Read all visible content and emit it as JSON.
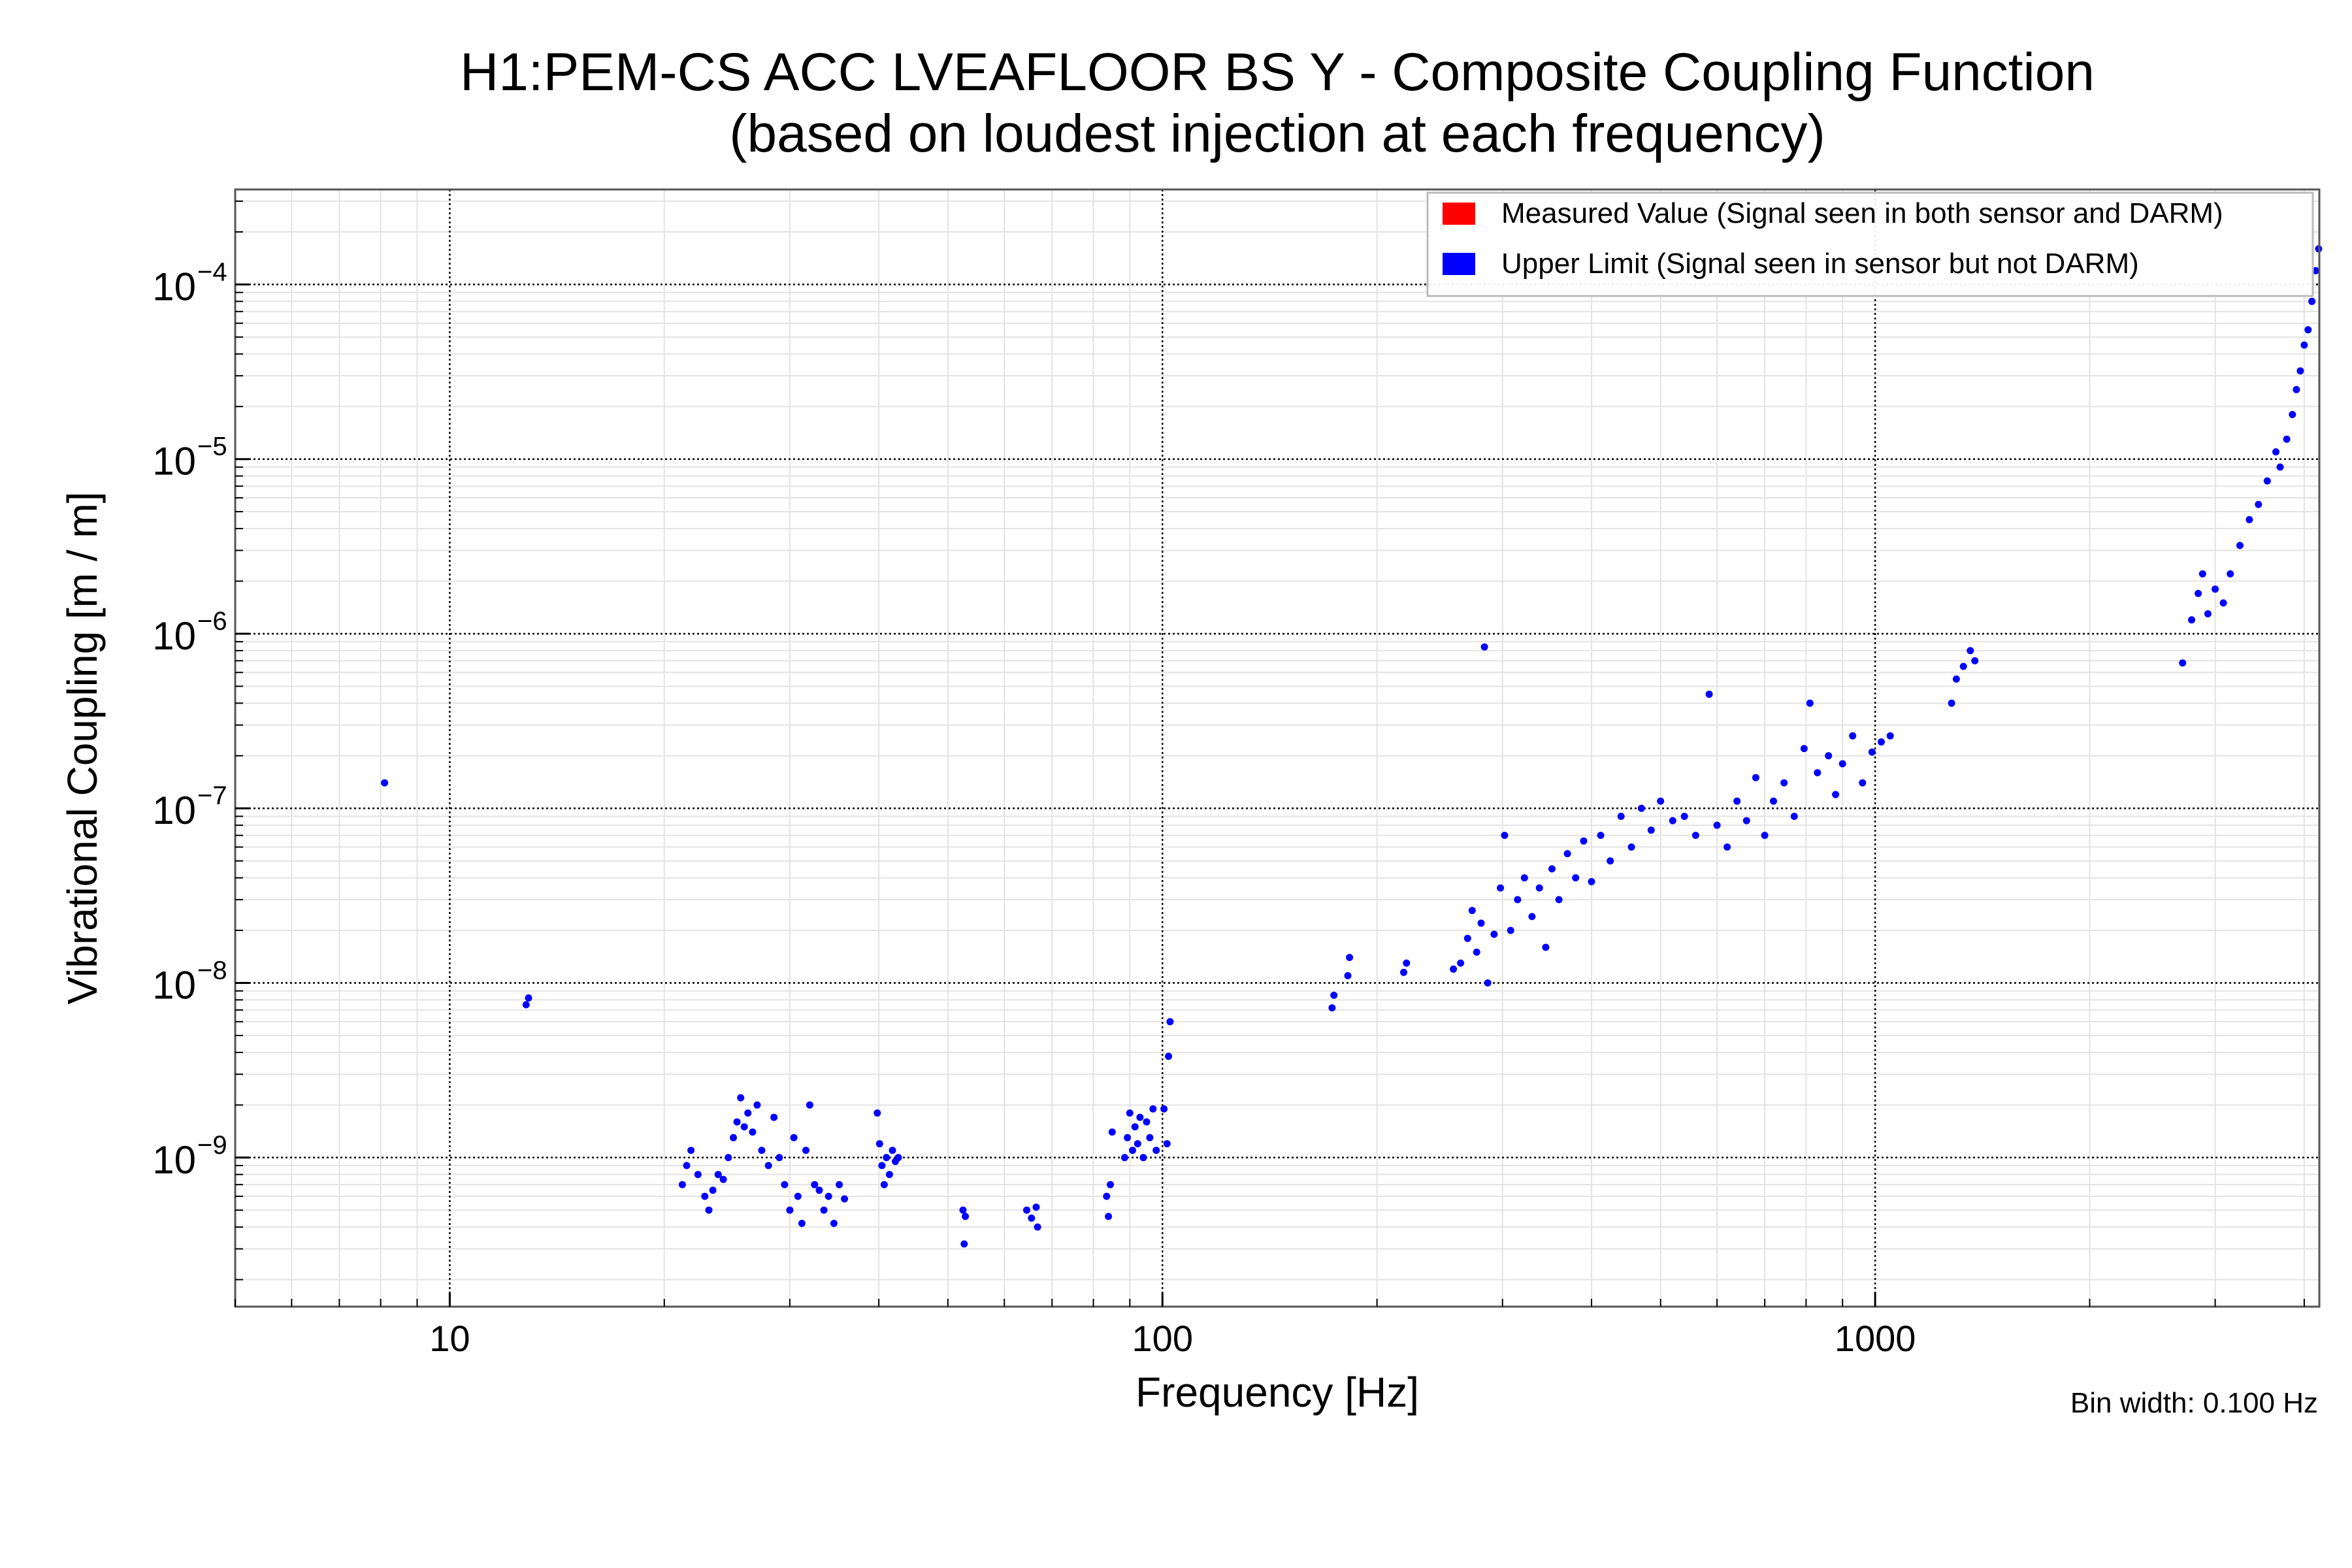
{
  "chart_data": {
    "type": "scatter",
    "title_line1": "H1:PEM-CS ACC LVEAFLOOR BS Y - Composite Coupling Function",
    "title_line2": "(based on loudest injection at each frequency)",
    "xlabel": "Frequency [Hz]",
    "ylabel": "Vibrational Coupling [m / m]",
    "x_scale": "log",
    "y_scale": "log",
    "xlim": [
      5,
      4200
    ],
    "ylim": [
      1.4e-10,
      0.00035
    ],
    "x_ticks": [
      10,
      100,
      1000
    ],
    "x_tick_labels": [
      "10",
      "100",
      "1000"
    ],
    "y_ticks": [
      1e-09,
      1e-08,
      1e-07,
      1e-06,
      1e-05,
      0.0001
    ],
    "y_tick_labels": [
      {
        "base": "10",
        "exp": "−9"
      },
      {
        "base": "10",
        "exp": "−8"
      },
      {
        "base": "10",
        "exp": "−7"
      },
      {
        "base": "10",
        "exp": "−6"
      },
      {
        "base": "10",
        "exp": "−5"
      },
      {
        "base": "10",
        "exp": "−4"
      }
    ],
    "grid": true,
    "legend_position": "top-right",
    "annotation": "Bin width: 0.100 Hz",
    "colors": {
      "measured": "#ff0000",
      "upper_limit": "#0000ff"
    },
    "series": [
      {
        "name": "Measured Value (Signal seen in both sensor and DARM)",
        "color": "#ff0000",
        "points": []
      },
      {
        "name": "Upper Limit (Signal seen in sensor but not DARM)",
        "color": "#0000ff",
        "points": [
          [
            8.1,
            1.4e-07
          ],
          [
            12.8,
            7.5e-09
          ],
          [
            12.9,
            8.2e-09
          ],
          [
            21.2,
            7e-10
          ],
          [
            21.5,
            9e-10
          ],
          [
            21.8,
            1.1e-09
          ],
          [
            22.3,
            8e-10
          ],
          [
            22.8,
            6e-10
          ],
          [
            23.1,
            5e-10
          ],
          [
            23.4,
            6.5e-10
          ],
          [
            23.8,
            8e-10
          ],
          [
            24.2,
            7.5e-10
          ],
          [
            24.6,
            1e-09
          ],
          [
            25.0,
            1.3e-09
          ],
          [
            25.3,
            1.6e-09
          ],
          [
            25.6,
            2.2e-09
          ],
          [
            25.9,
            1.5e-09
          ],
          [
            26.2,
            1.8e-09
          ],
          [
            26.6,
            1.4e-09
          ],
          [
            27.0,
            2e-09
          ],
          [
            27.4,
            1.1e-09
          ],
          [
            28.0,
            9e-10
          ],
          [
            28.5,
            1.7e-09
          ],
          [
            29.0,
            1e-09
          ],
          [
            29.5,
            7e-10
          ],
          [
            30.0,
            5e-10
          ],
          [
            30.4,
            1.3e-09
          ],
          [
            30.8,
            6e-10
          ],
          [
            31.2,
            4.2e-10
          ],
          [
            31.6,
            1.1e-09
          ],
          [
            32.0,
            2e-09
          ],
          [
            32.5,
            7e-10
          ],
          [
            33.0,
            6.5e-10
          ],
          [
            33.5,
            5e-10
          ],
          [
            34.0,
            6e-10
          ],
          [
            34.6,
            4.2e-10
          ],
          [
            35.2,
            7e-10
          ],
          [
            35.8,
            5.8e-10
          ],
          [
            39.8,
            1.8e-09
          ],
          [
            40.1,
            1.2e-09
          ],
          [
            40.4,
            9e-10
          ],
          [
            40.7,
            7e-10
          ],
          [
            41.0,
            1e-09
          ],
          [
            41.4,
            8e-10
          ],
          [
            41.8,
            1.1e-09
          ],
          [
            42.2,
            9.5e-10
          ],
          [
            42.6,
            1e-09
          ],
          [
            52.5,
            5e-10
          ],
          [
            52.7,
            3.2e-10
          ],
          [
            52.9,
            4.6e-10
          ],
          [
            64.5,
            5e-10
          ],
          [
            65.5,
            4.5e-10
          ],
          [
            66.5,
            5.2e-10
          ],
          [
            66.8,
            4e-10
          ],
          [
            83.5,
            6e-10
          ],
          [
            84.0,
            4.6e-10
          ],
          [
            84.5,
            7e-10
          ],
          [
            85.0,
            1.4e-09
          ],
          [
            88.5,
            1e-09
          ],
          [
            89.3,
            1.3e-09
          ],
          [
            90.0,
            1.8e-09
          ],
          [
            90.8,
            1.1e-09
          ],
          [
            91.5,
            1.5e-09
          ],
          [
            92.3,
            1.2e-09
          ],
          [
            93.0,
            1.7e-09
          ],
          [
            94.0,
            1e-09
          ],
          [
            95.0,
            1.6e-09
          ],
          [
            96.0,
            1.3e-09
          ],
          [
            97.0,
            1.9e-09
          ],
          [
            98.0,
            1.1e-09
          ],
          [
            100.5,
            1.9e-09
          ],
          [
            101.5,
            1.2e-09
          ],
          [
            102.0,
            3.8e-09
          ],
          [
            102.5,
            6e-09
          ],
          [
            173.0,
            7.2e-09
          ],
          [
            174.0,
            8.5e-09
          ],
          [
            182.0,
            1.1e-08
          ],
          [
            183.0,
            1.4e-08
          ],
          [
            218.0,
            1.15e-08
          ],
          [
            220.0,
            1.3e-08
          ],
          [
            256.0,
            1.2e-08
          ],
          [
            262.0,
            1.3e-08
          ],
          [
            268.0,
            1.8e-08
          ],
          [
            272.0,
            2.6e-08
          ],
          [
            276.0,
            1.5e-08
          ],
          [
            280.0,
            2.2e-08
          ],
          [
            283.0,
            8.4e-07
          ],
          [
            286.0,
            1e-08
          ],
          [
            292.0,
            1.9e-08
          ],
          [
            298.0,
            3.5e-08
          ],
          [
            302.0,
            7e-08
          ],
          [
            308.0,
            2e-08
          ],
          [
            315.0,
            3e-08
          ],
          [
            322.0,
            4e-08
          ],
          [
            330.0,
            2.4e-08
          ],
          [
            338.0,
            3.5e-08
          ],
          [
            345.0,
            1.6e-08
          ],
          [
            352.0,
            4.5e-08
          ],
          [
            360.0,
            3e-08
          ],
          [
            370.0,
            5.5e-08
          ],
          [
            380.0,
            4e-08
          ],
          [
            390.0,
            6.5e-08
          ],
          [
            400.0,
            3.8e-08
          ],
          [
            412.0,
            7e-08
          ],
          [
            425.0,
            5e-08
          ],
          [
            440.0,
            9e-08
          ],
          [
            455.0,
            6e-08
          ],
          [
            470.0,
            1e-07
          ],
          [
            485.0,
            7.5e-08
          ],
          [
            500.0,
            1.1e-07
          ],
          [
            520.0,
            8.5e-08
          ],
          [
            540.0,
            9e-08
          ],
          [
            560.0,
            7e-08
          ],
          [
            585.0,
            4.5e-07
          ],
          [
            600.0,
            8e-08
          ],
          [
            620.0,
            6e-08
          ],
          [
            640.0,
            1.1e-07
          ],
          [
            660.0,
            8.5e-08
          ],
          [
            680.0,
            1.5e-07
          ],
          [
            700.0,
            7e-08
          ],
          [
            720.0,
            1.1e-07
          ],
          [
            745.0,
            1.4e-07
          ],
          [
            770.0,
            9e-08
          ],
          [
            795.0,
            2.2e-07
          ],
          [
            810.0,
            4e-07
          ],
          [
            830.0,
            1.6e-07
          ],
          [
            860.0,
            2e-07
          ],
          [
            880.0,
            1.2e-07
          ],
          [
            900.0,
            1.8e-07
          ],
          [
            930.0,
            2.6e-07
          ],
          [
            960.0,
            1.4e-07
          ],
          [
            990.0,
            2.1e-07
          ],
          [
            1020.0,
            2.4e-07
          ],
          [
            1050.0,
            2.6e-07
          ],
          [
            1280.0,
            4e-07
          ],
          [
            1300.0,
            5.5e-07
          ],
          [
            1330.0,
            6.5e-07
          ],
          [
            1360.0,
            8e-07
          ],
          [
            1380.0,
            7e-07
          ],
          [
            2700.0,
            6.8e-07
          ],
          [
            2780.0,
            1.2e-06
          ],
          [
            2840.0,
            1.7e-06
          ],
          [
            2880.0,
            2.2e-06
          ],
          [
            2930.0,
            1.3e-06
          ],
          [
            3000.0,
            1.8e-06
          ],
          [
            3080.0,
            1.5e-06
          ],
          [
            3150.0,
            2.2e-06
          ],
          [
            3250.0,
            3.2e-06
          ],
          [
            3350.0,
            4.5e-06
          ],
          [
            3450.0,
            5.5e-06
          ],
          [
            3550.0,
            7.5e-06
          ],
          [
            3650.0,
            1.1e-05
          ],
          [
            3700.0,
            9e-06
          ],
          [
            3780.0,
            1.3e-05
          ],
          [
            3850.0,
            1.8e-05
          ],
          [
            3900.0,
            2.5e-05
          ],
          [
            3950.0,
            3.2e-05
          ],
          [
            4000.0,
            4.5e-05
          ],
          [
            4050.0,
            5.5e-05
          ],
          [
            4100.0,
            8e-05
          ],
          [
            4150.0,
            0.00012
          ],
          [
            4190.0,
            0.00016
          ]
        ]
      }
    ]
  }
}
